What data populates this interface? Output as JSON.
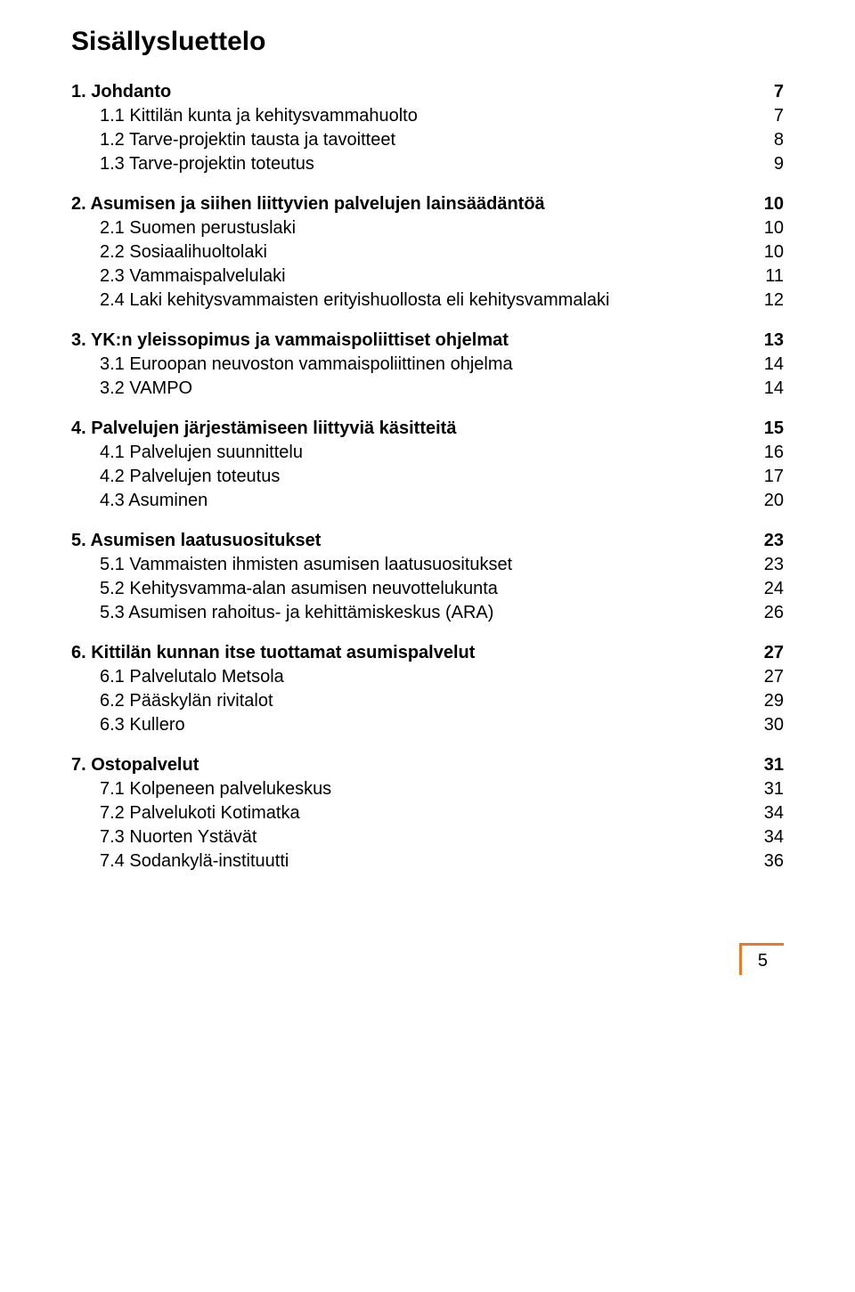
{
  "title": "Sisällysluettelo",
  "sections": [
    {
      "header": {
        "label": "1. Johdanto",
        "page": "7"
      },
      "items": [
        {
          "label": "1.1 Kittilän kunta ja kehitysvammahuolto",
          "page": "7"
        },
        {
          "label": "1.2 Tarve-projektin tausta ja tavoitteet",
          "page": "8"
        },
        {
          "label": "1.3 Tarve-projektin toteutus",
          "page": "9"
        }
      ]
    },
    {
      "header": {
        "label": "2. Asumisen ja siihen liittyvien palvelujen lainsäädäntöä",
        "page": "10"
      },
      "items": [
        {
          "label": "2.1 Suomen perustuslaki",
          "page": "10"
        },
        {
          "label": "2.2 Sosiaalihuoltolaki",
          "page": "10"
        },
        {
          "label": "2.3 Vammaispalvelulaki",
          "page": "11"
        },
        {
          "label": "2.4 Laki kehitysvammaisten erityishuollosta eli kehitysvammalaki",
          "page": "12"
        }
      ]
    },
    {
      "header": {
        "label": "3. YK:n yleissopimus ja vammaispoliittiset ohjelmat",
        "page": "13"
      },
      "items": [
        {
          "label": "3.1 Euroopan neuvoston vammaispoliittinen ohjelma",
          "page": "14"
        },
        {
          "label": "3.2 VAMPO",
          "page": "14"
        }
      ]
    },
    {
      "header": {
        "label": "4. Palvelujen järjestämiseen liittyviä käsitteitä",
        "page": "15"
      },
      "items": [
        {
          "label": "4.1 Palvelujen suunnittelu",
          "page": "16"
        },
        {
          "label": "4.2 Palvelujen toteutus",
          "page": "17"
        },
        {
          "label": "4.3 Asuminen",
          "page": "20"
        }
      ]
    },
    {
      "header": {
        "label": "5. Asumisen laatusuositukset",
        "page": "23"
      },
      "items": [
        {
          "label": "5.1 Vammaisten ihmisten asumisen laatusuositukset",
          "page": "23"
        },
        {
          "label": "5.2 Kehitysvamma-alan asumisen neuvottelukunta",
          "page": "24"
        },
        {
          "label": "5.3 Asumisen rahoitus- ja kehittämiskeskus (ARA)",
          "page": "26"
        }
      ]
    },
    {
      "header": {
        "label": "6. Kittilän kunnan itse tuottamat asumispalvelut",
        "page": "27"
      },
      "items": [
        {
          "label": "6.1 Palvelutalo Metsola",
          "page": "27"
        },
        {
          "label": "6.2 Pääskylän rivitalot",
          "page": "29"
        },
        {
          "label": "6.3 Kullero",
          "page": "30"
        }
      ]
    },
    {
      "header": {
        "label": "7. Ostopalvelut",
        "page": "31"
      },
      "items": [
        {
          "label": "7.1 Kolpeneen palvelukeskus",
          "page": "31"
        },
        {
          "label": "7.2 Palvelukoti Kotimatka",
          "page": "34"
        },
        {
          "label": "7.3 Nuorten Ystävät",
          "page": "34"
        },
        {
          "label": "7.4 Sodankylä-instituutti",
          "page": "36"
        }
      ]
    }
  ],
  "footer": {
    "page_number": "5",
    "accent_color": "#e87a2a"
  },
  "typography": {
    "title_fontsize": 30,
    "body_fontsize": 20
  }
}
